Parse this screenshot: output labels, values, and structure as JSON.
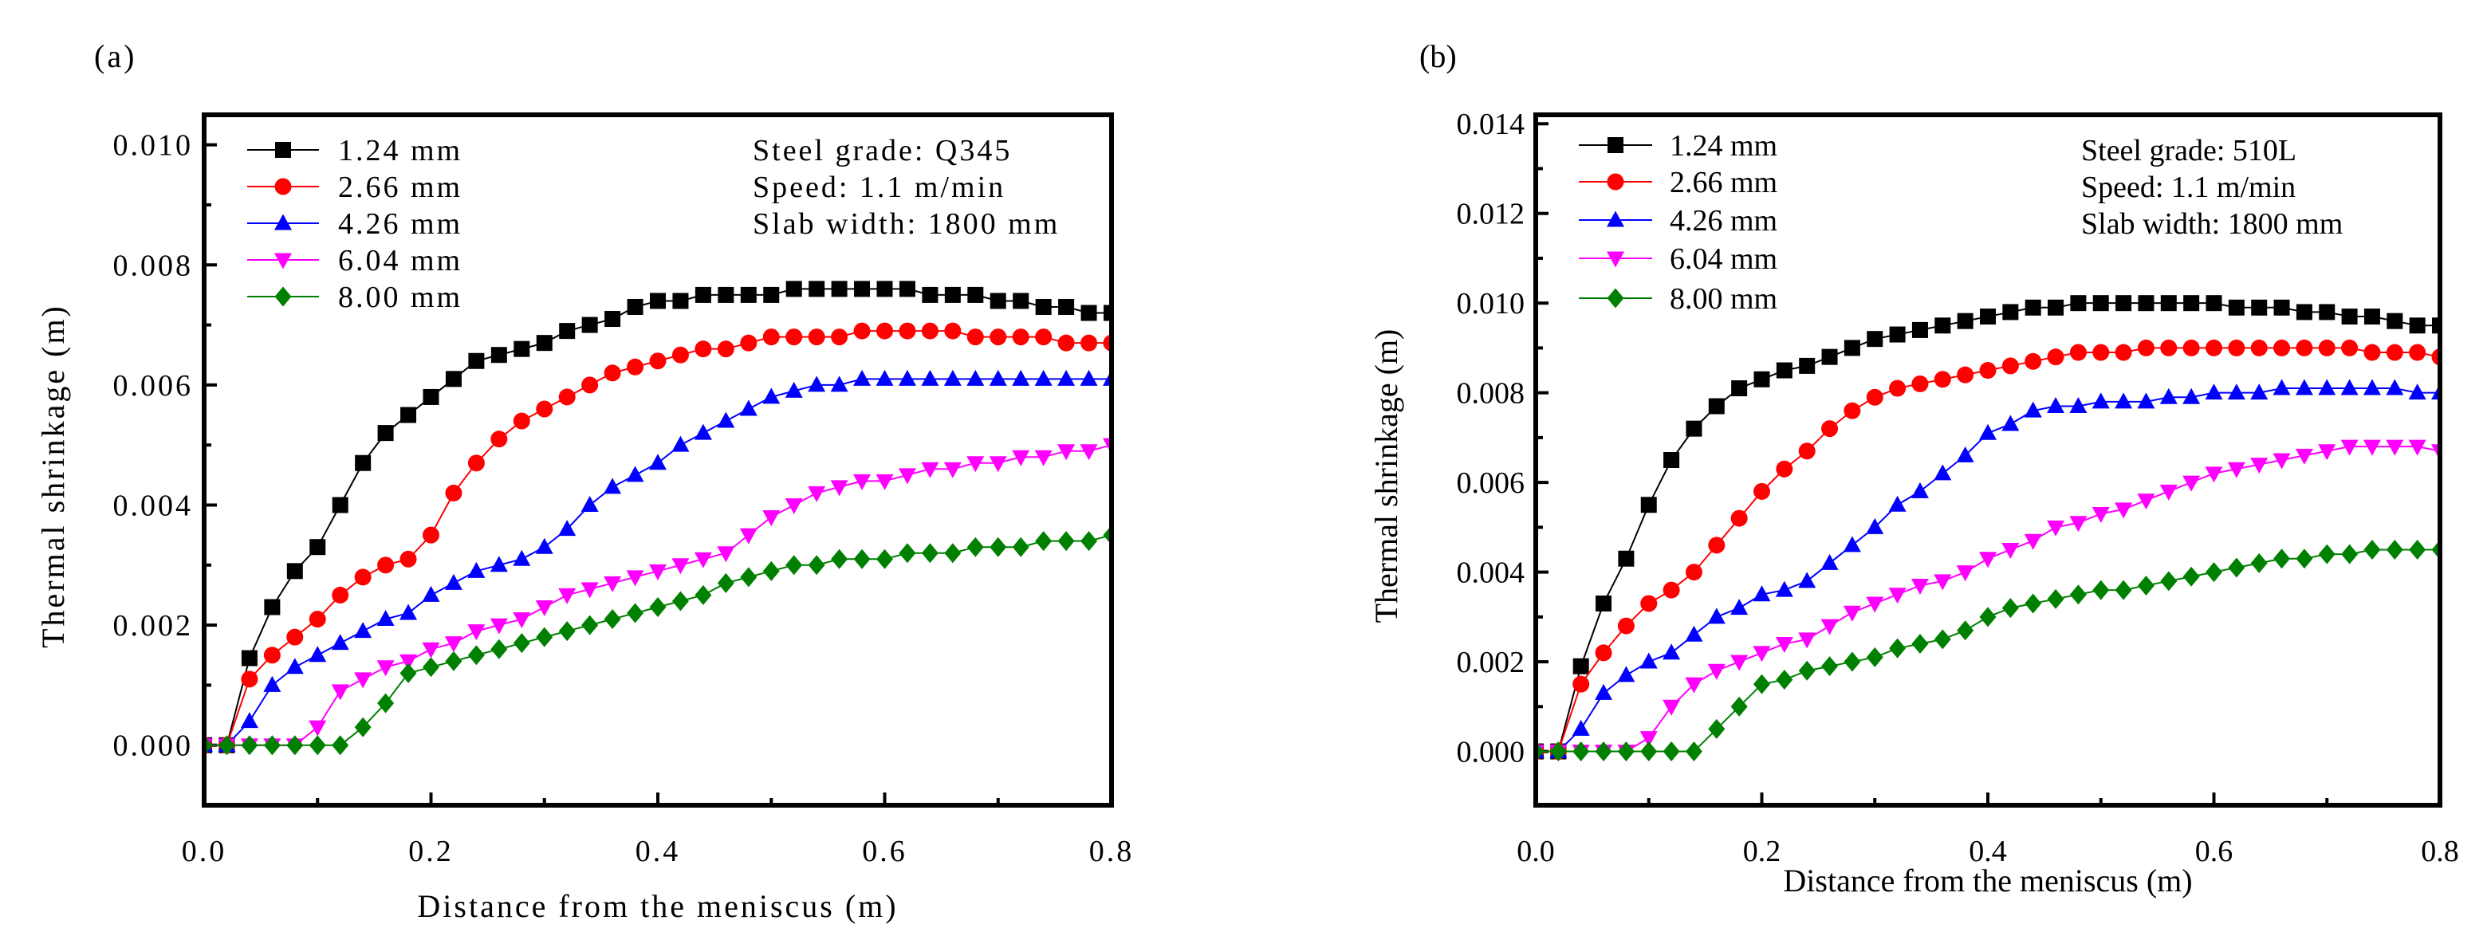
{
  "chart_data": [
    {
      "panel_label": "(a)",
      "type": "line",
      "xlabel": "Distance from the meniscus (m)",
      "ylabel": "Thermal shrinkage (m)",
      "xlim": [
        0.0,
        0.8
      ],
      "ylim": [
        -0.001,
        0.0105
      ],
      "xticks": [
        "0.0",
        "0.2",
        "0.4",
        "0.6",
        "0.8"
      ],
      "xtick_values": [
        0.0,
        0.2,
        0.4,
        0.6,
        0.8
      ],
      "yticks": [
        "0.000",
        "0.002",
        "0.004",
        "0.006",
        "0.008",
        "0.010"
      ],
      "ytick_values": [
        0.0,
        0.002,
        0.004,
        0.006,
        0.008,
        0.01
      ],
      "grid": false,
      "legend_position": "top-left",
      "annotations": [
        "Steel grade: Q345",
        "Speed: 1.1 m/min",
        "Slab width: 1800 mm"
      ],
      "x": [
        0,
        0.02,
        0.04,
        0.06,
        0.08,
        0.1,
        0.12,
        0.14,
        0.16,
        0.18,
        0.2,
        0.22,
        0.24,
        0.26,
        0.28,
        0.3,
        0.32,
        0.34,
        0.36,
        0.38,
        0.4,
        0.42,
        0.44,
        0.46,
        0.48,
        0.5,
        0.52,
        0.54,
        0.56,
        0.58,
        0.6,
        0.62,
        0.64,
        0.66,
        0.68,
        0.7,
        0.72,
        0.74,
        0.76,
        0.78,
        0.8
      ],
      "series": [
        {
          "name": "1.24 mm",
          "color": "#000000",
          "marker": "square",
          "values": [
            0,
            0,
            0.00145,
            0.0023,
            0.0029,
            0.0033,
            0.004,
            0.0047,
            0.0052,
            0.0055,
            0.0058,
            0.0061,
            0.0064,
            0.0065,
            0.0066,
            0.0067,
            0.0069,
            0.007,
            0.0071,
            0.0073,
            0.0074,
            0.0074,
            0.0075,
            0.0075,
            0.0075,
            0.0075,
            0.0076,
            0.0076,
            0.0076,
            0.0076,
            0.0076,
            0.0076,
            0.0075,
            0.0075,
            0.0075,
            0.0074,
            0.0074,
            0.0073,
            0.0073,
            0.0072,
            0.0072
          ]
        },
        {
          "name": "2.66 mm",
          "color": "#ff0000",
          "marker": "circle",
          "values": [
            0,
            0,
            0.0011,
            0.0015,
            0.0018,
            0.0021,
            0.0025,
            0.0028,
            0.003,
            0.0031,
            0.0035,
            0.0042,
            0.0047,
            0.0051,
            0.0054,
            0.0056,
            0.0058,
            0.006,
            0.0062,
            0.0063,
            0.0064,
            0.0065,
            0.0066,
            0.0066,
            0.0067,
            0.0068,
            0.0068,
            0.0068,
            0.0068,
            0.0069,
            0.0069,
            0.0069,
            0.0069,
            0.0069,
            0.0068,
            0.0068,
            0.0068,
            0.0068,
            0.0067,
            0.0067,
            0.0067
          ]
        },
        {
          "name": "4.26 mm",
          "color": "#0000ff",
          "marker": "triangle-up",
          "values": [
            0,
            0,
            0.0004,
            0.001,
            0.0013,
            0.0015,
            0.0017,
            0.0019,
            0.0021,
            0.0022,
            0.0025,
            0.0027,
            0.0029,
            0.003,
            0.0031,
            0.0033,
            0.0036,
            0.004,
            0.0043,
            0.0045,
            0.0047,
            0.005,
            0.0052,
            0.0054,
            0.0056,
            0.0058,
            0.0059,
            0.006,
            0.006,
            0.0061,
            0.0061,
            0.0061,
            0.0061,
            0.0061,
            0.0061,
            0.0061,
            0.0061,
            0.0061,
            0.0061,
            0.0061,
            0.0061
          ]
        },
        {
          "name": "6.04 mm",
          "color": "#ff00ff",
          "marker": "triangle-down",
          "values": [
            0,
            0,
            0,
            0,
            0,
            0.0003,
            0.0009,
            0.0011,
            0.0013,
            0.0014,
            0.0016,
            0.0017,
            0.0019,
            0.002,
            0.0021,
            0.0023,
            0.0025,
            0.0026,
            0.0027,
            0.0028,
            0.0029,
            0.003,
            0.0031,
            0.0032,
            0.0035,
            0.0038,
            0.004,
            0.0042,
            0.0043,
            0.0044,
            0.0044,
            0.0045,
            0.0046,
            0.0046,
            0.0047,
            0.0047,
            0.0048,
            0.0048,
            0.0049,
            0.0049,
            0.005
          ]
        },
        {
          "name": "8.00 mm",
          "color": "#008000",
          "marker": "diamond",
          "values": [
            0,
            0,
            0,
            0,
            0,
            0,
            0,
            0.0003,
            0.0007,
            0.0012,
            0.0013,
            0.0014,
            0.0015,
            0.0016,
            0.0017,
            0.0018,
            0.0019,
            0.002,
            0.0021,
            0.0022,
            0.0023,
            0.0024,
            0.0025,
            0.0027,
            0.0028,
            0.0029,
            0.003,
            0.003,
            0.0031,
            0.0031,
            0.0031,
            0.0032,
            0.0032,
            0.0032,
            0.0033,
            0.0033,
            0.0033,
            0.0034,
            0.0034,
            0.0034,
            0.0035
          ]
        }
      ]
    },
    {
      "panel_label": "(b)",
      "type": "line",
      "xlabel": "Distance from the meniscus (m)",
      "ylabel": "Thermal shrinkage (m)",
      "xlim": [
        0.0,
        0.8
      ],
      "ylim": [
        -0.0012,
        0.0142
      ],
      "xticks": [
        "0.0",
        "0.2",
        "0.4",
        "0.6",
        "0.8"
      ],
      "xtick_values": [
        0.0,
        0.2,
        0.4,
        0.6,
        0.8
      ],
      "yticks": [
        "0.000",
        "0.002",
        "0.004",
        "0.006",
        "0.008",
        "0.010",
        "0.012",
        "0.014"
      ],
      "ytick_values": [
        0.0,
        0.002,
        0.004,
        0.006,
        0.008,
        0.01,
        0.012,
        0.014
      ],
      "grid": false,
      "legend_position": "top-left",
      "annotations": [
        "Steel grade: 510L",
        "Speed: 1.1 m/min",
        "Slab width: 1800 mm"
      ],
      "x": [
        0,
        0.02,
        0.04,
        0.06,
        0.08,
        0.1,
        0.12,
        0.14,
        0.16,
        0.18,
        0.2,
        0.22,
        0.24,
        0.26,
        0.28,
        0.3,
        0.32,
        0.34,
        0.36,
        0.38,
        0.4,
        0.42,
        0.44,
        0.46,
        0.48,
        0.5,
        0.52,
        0.54,
        0.56,
        0.58,
        0.6,
        0.62,
        0.64,
        0.66,
        0.68,
        0.7,
        0.72,
        0.74,
        0.76,
        0.78,
        0.8
      ],
      "series": [
        {
          "name": "1.24 mm",
          "color": "#000000",
          "marker": "square",
          "values": [
            0,
            0,
            0.0019,
            0.0033,
            0.0043,
            0.0055,
            0.0065,
            0.0072,
            0.0077,
            0.0081,
            0.0083,
            0.0085,
            0.0086,
            0.0088,
            0.009,
            0.0092,
            0.0093,
            0.0094,
            0.0095,
            0.0096,
            0.0097,
            0.0098,
            0.0099,
            0.0099,
            0.01,
            0.01,
            0.01,
            0.01,
            0.01,
            0.01,
            0.01,
            0.0099,
            0.0099,
            0.0099,
            0.0098,
            0.0098,
            0.0097,
            0.0097,
            0.0096,
            0.0095,
            0.0095
          ]
        },
        {
          "name": "2.66 mm",
          "color": "#ff0000",
          "marker": "circle",
          "values": [
            0,
            0,
            0.0015,
            0.0022,
            0.0028,
            0.0033,
            0.0036,
            0.004,
            0.0046,
            0.0052,
            0.0058,
            0.0063,
            0.0067,
            0.0072,
            0.0076,
            0.0079,
            0.0081,
            0.0082,
            0.0083,
            0.0084,
            0.0085,
            0.0086,
            0.0087,
            0.0088,
            0.0089,
            0.0089,
            0.0089,
            0.009,
            0.009,
            0.009,
            0.009,
            0.009,
            0.009,
            0.009,
            0.009,
            0.009,
            0.009,
            0.0089,
            0.0089,
            0.0089,
            0.0088
          ]
        },
        {
          "name": "4.26 mm",
          "color": "#0000ff",
          "marker": "triangle-up",
          "values": [
            0,
            0,
            0.0005,
            0.0013,
            0.0017,
            0.002,
            0.0022,
            0.0026,
            0.003,
            0.0032,
            0.0035,
            0.0036,
            0.0038,
            0.0042,
            0.0046,
            0.005,
            0.0055,
            0.0058,
            0.0062,
            0.0066,
            0.0071,
            0.0073,
            0.0076,
            0.0077,
            0.0077,
            0.0078,
            0.0078,
            0.0078,
            0.0079,
            0.0079,
            0.008,
            0.008,
            0.008,
            0.0081,
            0.0081,
            0.0081,
            0.0081,
            0.0081,
            0.0081,
            0.008,
            0.008
          ]
        },
        {
          "name": "6.04 mm",
          "color": "#ff00ff",
          "marker": "triangle-down",
          "values": [
            0,
            0,
            0,
            0,
            0,
            0.0003,
            0.001,
            0.0015,
            0.0018,
            0.002,
            0.0022,
            0.0024,
            0.0025,
            0.0028,
            0.0031,
            0.0033,
            0.0035,
            0.0037,
            0.0038,
            0.004,
            0.0043,
            0.0045,
            0.0047,
            0.005,
            0.0051,
            0.0053,
            0.0054,
            0.0056,
            0.0058,
            0.006,
            0.0062,
            0.0063,
            0.0064,
            0.0065,
            0.0066,
            0.0067,
            0.0068,
            0.0068,
            0.0068,
            0.0068,
            0.0067
          ]
        },
        {
          "name": "8.00 mm",
          "color": "#008000",
          "marker": "diamond",
          "values": [
            0,
            0,
            0,
            0,
            0,
            0,
            0,
            0,
            0.0005,
            0.001,
            0.0015,
            0.0016,
            0.0018,
            0.0019,
            0.002,
            0.0021,
            0.0023,
            0.0024,
            0.0025,
            0.0027,
            0.003,
            0.0032,
            0.0033,
            0.0034,
            0.0035,
            0.0036,
            0.0036,
            0.0037,
            0.0038,
            0.0039,
            0.004,
            0.0041,
            0.0042,
            0.0043,
            0.0043,
            0.0044,
            0.0044,
            0.0045,
            0.0045,
            0.0045,
            0.0045
          ]
        }
      ]
    }
  ]
}
